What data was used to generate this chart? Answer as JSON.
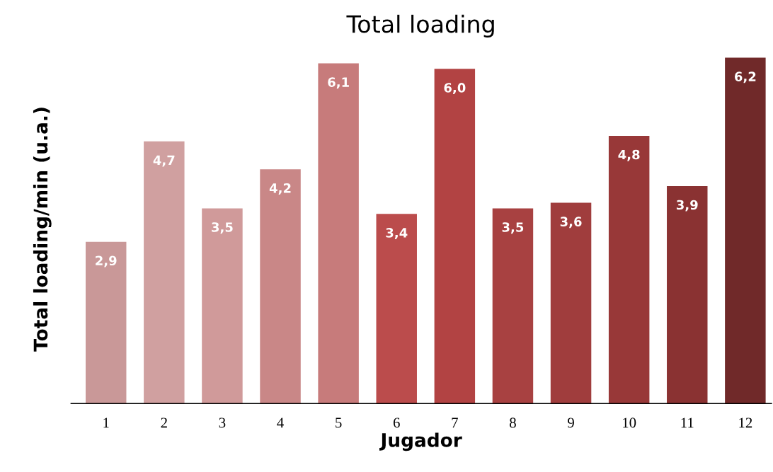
{
  "chart_data": {
    "type": "bar",
    "title": "Total loading",
    "xlabel": "Jugador",
    "ylabel": "Total loading/min (u.a.)",
    "categories": [
      "1",
      "2",
      "3",
      "4",
      "5",
      "6",
      "7",
      "8",
      "9",
      "10",
      "11",
      "12"
    ],
    "values": [
      2.9,
      4.7,
      3.5,
      4.2,
      6.1,
      3.4,
      6.0,
      3.5,
      3.6,
      4.8,
      3.9,
      6.2
    ],
    "value_labels": [
      "2,9",
      "4,7",
      "3,5",
      "4,2",
      "6,1",
      "3,4",
      "6,0",
      "3,5",
      "3,6",
      "4,8",
      "3,9",
      "6,2"
    ],
    "colors": [
      "#c99898",
      "#d0a0a0",
      "#d09a9a",
      "#c98787",
      "#c77b7b",
      "#bb4c4c",
      "#b24343",
      "#a84141",
      "#a03d3d",
      "#983838",
      "#8a3232",
      "#702929"
    ],
    "grid": false,
    "legend": false
  }
}
